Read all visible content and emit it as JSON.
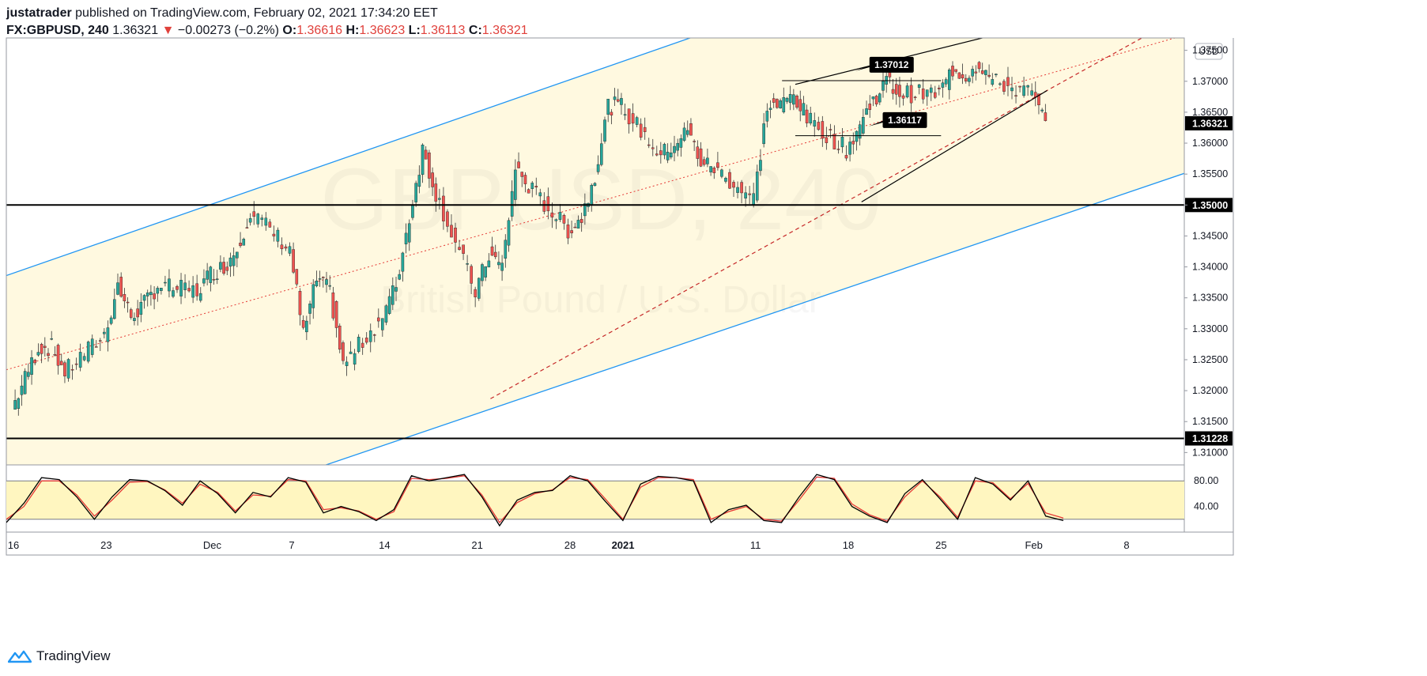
{
  "header": {
    "author": "justatrader",
    "published": "published on TradingView.com, February 02, 2021 17:34:20 EET",
    "symbol": "FX:GBPUSD, 240",
    "last": "1.36321",
    "change_arrow": "▼",
    "change": "−0.00273 (−0.2%)",
    "o_label": "O:",
    "o": "1.36616",
    "h_label": "H:",
    "h": "1.36623",
    "l_label": "L:",
    "l": "1.36113",
    "c_label": "C:",
    "c": "1.36321"
  },
  "footer": {
    "brand": "TradingView",
    "logo_icon": "tradingview-logo-icon"
  },
  "watermark": {
    "symbol": "GBPUSD, 240",
    "description": "British Pound / U.S. Dollar"
  },
  "colors": {
    "up": "#26a69a",
    "down": "#ef5350",
    "channel": "#2196f3",
    "channel_fill": "#fff9e0",
    "stoch_k": "#000000",
    "stoch_d": "#e53935"
  },
  "chart_data": {
    "type": "candlestick",
    "currency": "USD",
    "ylim": [
      1.308,
      1.377
    ],
    "y_ticks": [
      "1.37500",
      "1.37000",
      "1.36500",
      "1.36000",
      "1.35500",
      "1.35000",
      "1.34500",
      "1.34000",
      "1.33500",
      "1.33000",
      "1.32500",
      "1.32000",
      "1.31500",
      "1.31000"
    ],
    "x_ticks": [
      {
        "label": "16",
        "date": "2020-11-16"
      },
      {
        "label": "23",
        "date": "2020-11-23"
      },
      {
        "label": "Dec",
        "date": "2020-12-01"
      },
      {
        "label": "7",
        "date": "2020-12-07"
      },
      {
        "label": "14",
        "date": "2020-12-14"
      },
      {
        "label": "21",
        "date": "2020-12-21"
      },
      {
        "label": "28",
        "date": "2020-12-28"
      },
      {
        "label": "2021",
        "date": "2021-01-01",
        "bold": true
      },
      {
        "label": "11",
        "date": "2021-01-11"
      },
      {
        "label": "18",
        "date": "2021-01-18"
      },
      {
        "label": "25",
        "date": "2021-01-25"
      },
      {
        "label": "Feb",
        "date": "2021-02-01"
      },
      {
        "label": "8",
        "date": "2021-02-08"
      }
    ],
    "price_path": [
      [
        "2020-11-16",
        1.317
      ],
      [
        "2020-11-17",
        1.322
      ],
      [
        "2020-11-18",
        1.327
      ],
      [
        "2020-11-19",
        1.327
      ],
      [
        "2020-11-20",
        1.323
      ],
      [
        "2020-11-23",
        1.329
      ],
      [
        "2020-11-24",
        1.337
      ],
      [
        "2020-11-25",
        1.332
      ],
      [
        "2020-11-26",
        1.334
      ],
      [
        "2020-11-27",
        1.337
      ],
      [
        "2020-11-30",
        1.336
      ],
      [
        "2020-12-01",
        1.339
      ],
      [
        "2020-12-02",
        1.34
      ],
      [
        "2020-12-03",
        1.343
      ],
      [
        "2020-12-04",
        1.349
      ],
      [
        "2020-12-07",
        1.343
      ],
      [
        "2020-12-08",
        1.329
      ],
      [
        "2020-12-09",
        1.338
      ],
      [
        "2020-12-10",
        1.336
      ],
      [
        "2020-12-11",
        1.324
      ],
      [
        "2020-12-14",
        1.332
      ],
      [
        "2020-12-15",
        1.337
      ],
      [
        "2020-12-16",
        1.348
      ],
      [
        "2020-12-17",
        1.359
      ],
      [
        "2020-12-18",
        1.352
      ],
      [
        "2020-12-21",
        1.336
      ],
      [
        "2020-12-22",
        1.342
      ],
      [
        "2020-12-23",
        1.34
      ],
      [
        "2020-12-24",
        1.356
      ],
      [
        "2020-12-25",
        1.353
      ],
      [
        "2020-12-28",
        1.346
      ],
      [
        "2020-12-29",
        1.348
      ],
      [
        "2020-12-30",
        1.355
      ],
      [
        "2020-12-31",
        1.366
      ],
      [
        "2021-01-01",
        1.366
      ],
      [
        "2021-01-04",
        1.358
      ],
      [
        "2021-01-05",
        1.36
      ],
      [
        "2021-01-06",
        1.362
      ],
      [
        "2021-01-07",
        1.357
      ],
      [
        "2021-01-08",
        1.356
      ],
      [
        "2021-01-11",
        1.351
      ],
      [
        "2021-01-12",
        1.366
      ],
      [
        "2021-01-13",
        1.366
      ],
      [
        "2021-01-14",
        1.368
      ],
      [
        "2021-01-15",
        1.364
      ],
      [
        "2021-01-18",
        1.359
      ],
      [
        "2021-01-19",
        1.363
      ],
      [
        "2021-01-20",
        1.367
      ],
      [
        "2021-01-21",
        1.37
      ],
      [
        "2021-01-22",
        1.368
      ],
      [
        "2021-01-25",
        1.368
      ],
      [
        "2021-01-26",
        1.372
      ],
      [
        "2021-01-27",
        1.371
      ],
      [
        "2021-01-28",
        1.373
      ],
      [
        "2021-01-29",
        1.37
      ],
      [
        "2021-02-01",
        1.368
      ],
      [
        "2021-02-02",
        1.363
      ]
    ],
    "horizontal_levels": [
      {
        "price": 1.35,
        "label": "1.35000"
      },
      {
        "price": 1.31228,
        "label": "1.31228"
      }
    ],
    "last_price": {
      "price": 1.36321,
      "label": "1.36321"
    },
    "callouts": [
      {
        "date": "2021-01-19",
        "price": 1.37012,
        "label": "1.37012"
      },
      {
        "date": "2021-01-20",
        "price": 1.36117,
        "label": "1.36117"
      }
    ],
    "channel": {
      "upper": [
        [
          "2020-11-16",
          1.339
        ],
        [
          "2021-01-07",
          1.3777
        ]
      ],
      "lower": [
        [
          "2020-12-10",
          1.3083
        ],
        [
          "2021-02-10",
          1.3534
        ]
      ],
      "mid": [
        [
          "2020-11-16",
          1.3237
        ],
        [
          "2021-02-10",
          1.376
        ]
      ]
    },
    "trendlines": [
      {
        "from": [
          "2020-12-22",
          1.3187
        ],
        "to": [
          "2021-02-10",
          1.378
        ],
        "style": "dashed"
      },
      {
        "from": [
          "2021-01-19",
          1.3505
        ],
        "to": [
          "2021-02-02",
          1.3685
        ],
        "style": "solid"
      },
      {
        "from": [
          "2021-01-14",
          1.3695
        ],
        "to": [
          "2021-01-30",
          1.378
        ],
        "style": "solid"
      }
    ],
    "rectangles": [
      {
        "from": [
          "2021-01-13",
          1.3701
        ],
        "to": [
          "2021-01-25",
          1.3701
        ]
      },
      {
        "from": [
          "2021-01-14",
          1.3612
        ],
        "to": [
          "2021-01-25",
          1.3612
        ]
      }
    ],
    "stochastic": {
      "y_ticks": [
        "80.00",
        "40.00"
      ],
      "ylim": [
        0,
        100
      ],
      "band": [
        20,
        80
      ],
      "k": [
        15,
        45,
        85,
        82,
        55,
        20,
        55,
        82,
        80,
        65,
        42,
        80,
        60,
        30,
        62,
        55,
        85,
        78,
        30,
        40,
        32,
        18,
        35,
        88,
        80,
        85,
        90,
        55,
        10,
        50,
        62,
        65,
        88,
        80,
        48,
        18,
        75,
        87,
        85,
        80,
        15,
        35,
        42,
        18,
        15,
        55,
        90,
        82,
        40,
        25,
        15,
        60,
        82,
        52,
        20,
        85,
        75,
        50,
        80,
        25,
        18
      ],
      "d": [
        20,
        40,
        80,
        80,
        58,
        25,
        50,
        78,
        79,
        66,
        45,
        75,
        62,
        33,
        58,
        56,
        82,
        80,
        35,
        38,
        33,
        20,
        32,
        84,
        82,
        84,
        88,
        58,
        15,
        46,
        60,
        66,
        85,
        82,
        52,
        20,
        70,
        85,
        85,
        82,
        20,
        32,
        40,
        20,
        17,
        50,
        86,
        84,
        44,
        27,
        17,
        55,
        80,
        55,
        23,
        80,
        77,
        52,
        76,
        30,
        22
      ]
    }
  }
}
